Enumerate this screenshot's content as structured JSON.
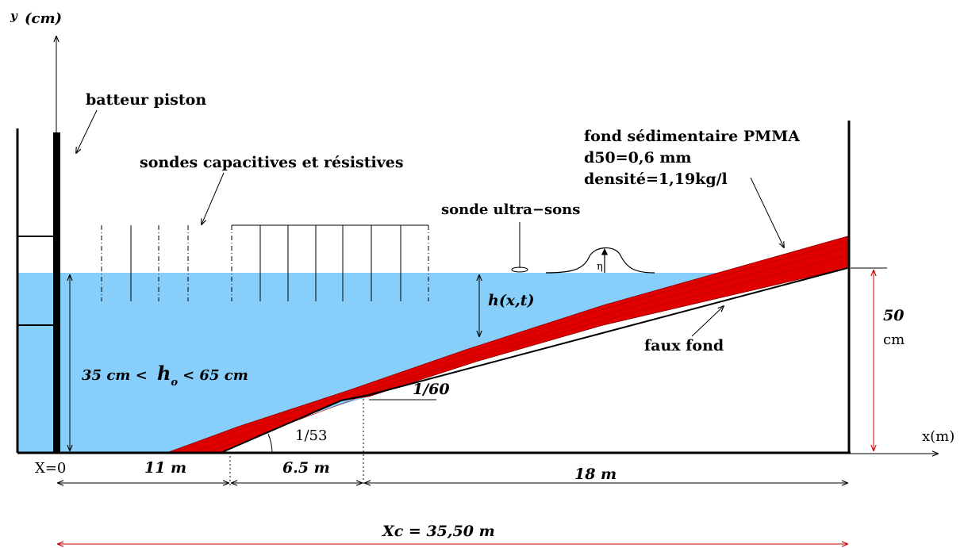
{
  "labels": {
    "y_axis": "y",
    "y_unit": "(cm)",
    "x_axis": "x(m)",
    "batteur": "batteur piston",
    "sondes": "sondes capacitives et résistives",
    "sonde_us": "sonde ultra−sons",
    "fond_line1": "fond sédimentaire PMMA",
    "fond_line2": "d50=0,6 mm",
    "fond_line3": "densité=1,19kg/l",
    "h_xt": "h(x,t)",
    "eta": "η",
    "height_value": "50",
    "height_unit": "cm",
    "faux_fond": "faux fond",
    "h0_left": "35 cm <",
    "h0_h": "h",
    "h0_sub": "o",
    "h0_right": "< 65 cm",
    "slope_60": "1/60",
    "slope_53": "1/53",
    "x0": "X=0",
    "dist_1": "11 m",
    "dist_2": "6.5 m",
    "dist_3": "18 m",
    "total": "Xc = 35,50 m"
  },
  "colors": {
    "water": "#87CEFA",
    "sediment": "#E00000",
    "sediment_dark": "#8B0000",
    "annotation_red": "#CC0000",
    "line": "#000000"
  }
}
